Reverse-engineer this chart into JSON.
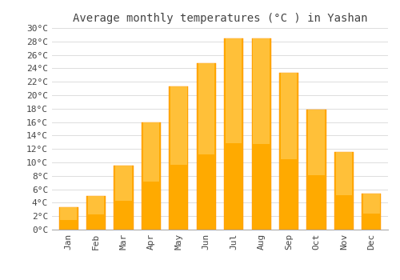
{
  "title": "Average monthly temperatures (°C ) in Yashan",
  "months": [
    "Jan",
    "Feb",
    "Mar",
    "Apr",
    "May",
    "Jun",
    "Jul",
    "Aug",
    "Sep",
    "Oct",
    "Nov",
    "Dec"
  ],
  "values": [
    3.3,
    5.0,
    9.5,
    16.0,
    21.3,
    24.8,
    28.5,
    28.4,
    23.3,
    17.9,
    11.5,
    5.4
  ],
  "bar_color": "#FFAA00",
  "bar_edge_color": "#FF8C00",
  "bar_highlight": "#FFD060",
  "background_color": "#FFFFFF",
  "grid_color": "#DDDDDD",
  "text_color": "#444444",
  "ylim": [
    0,
    30
  ],
  "ytick_step": 2,
  "title_fontsize": 10,
  "tick_fontsize": 8,
  "font_family": "monospace"
}
